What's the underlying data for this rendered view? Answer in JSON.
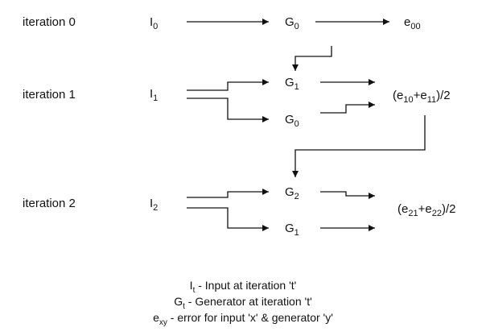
{
  "rows": [
    {
      "iteration_label": "iteration 0",
      "input": {
        "base": "I",
        "sub": "0"
      },
      "generators": [
        {
          "base": "G",
          "sub": "0"
        }
      ],
      "error_expr": {
        "parts": [
          {
            "t": "e"
          },
          {
            "s": "00"
          }
        ]
      }
    },
    {
      "iteration_label": "iteration 1",
      "input": {
        "base": "I",
        "sub": "1"
      },
      "generators": [
        {
          "base": "G",
          "sub": "1"
        },
        {
          "base": "G",
          "sub": "0"
        }
      ],
      "error_expr": {
        "parts": [
          {
            "t": "(e"
          },
          {
            "s": "10"
          },
          {
            "t": "+e"
          },
          {
            "s": "11"
          },
          {
            "t": ")/2"
          }
        ]
      }
    },
    {
      "iteration_label": "iteration 2",
      "input": {
        "base": "I",
        "sub": "2"
      },
      "generators": [
        {
          "base": "G",
          "sub": "2"
        },
        {
          "base": "G",
          "sub": "1"
        }
      ],
      "error_expr": {
        "parts": [
          {
            "t": "(e"
          },
          {
            "s": "21"
          },
          {
            "t": "+e"
          },
          {
            "s": "22"
          },
          {
            "t": ")/2"
          }
        ]
      }
    }
  ],
  "legend": [
    {
      "base": "I",
      "sub": "t",
      "text": " - Input at iteration 't'"
    },
    {
      "base": "G",
      "sub": "t",
      "text": " - Generator at iteration 't'"
    },
    {
      "base": "e",
      "sub": "xy",
      "text": " - error for input 'x' & generator 'y'"
    }
  ],
  "colors": {
    "line": "#111111",
    "text": "#111111",
    "background": "#ffffff"
  }
}
